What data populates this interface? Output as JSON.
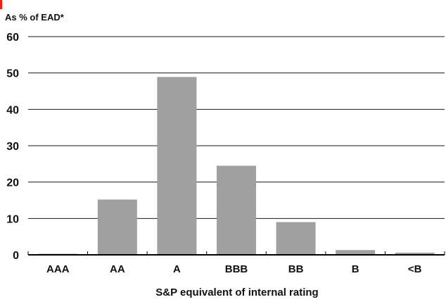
{
  "colors": {
    "bar": "#a0a0a0",
    "grid": "#1a1a1a",
    "accent": "#e2231a"
  },
  "chart_data": {
    "type": "bar",
    "categories": [
      "AAA",
      "AA",
      "A",
      "BBB",
      "BB",
      "B",
      "<B"
    ],
    "values": [
      0.3,
      15.2,
      48.9,
      24.5,
      9.0,
      1.3,
      0.6
    ],
    "ylabel": "As % of EAD*",
    "xlabel": "S&P equivalent of internal rating",
    "ylim": [
      0,
      60
    ],
    "yticks": [
      0,
      10,
      20,
      30,
      40,
      50,
      60
    ],
    "grid": true,
    "legend": "none"
  }
}
